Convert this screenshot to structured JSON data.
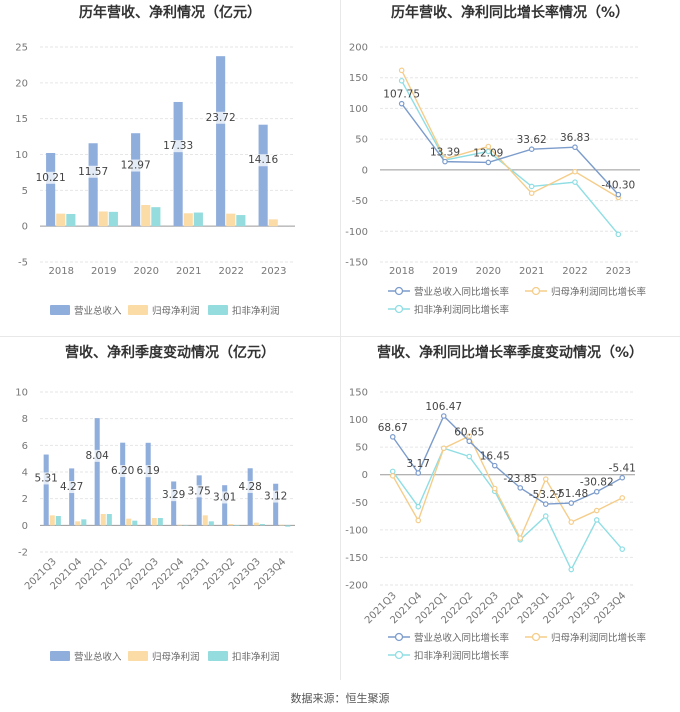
{
  "source": "数据来源：恒生聚源",
  "colors": {
    "revenue": "#90aedc",
    "net": "#fbdca6",
    "deducted": "#94dcde",
    "rev_line": "#7c9ccc",
    "net_line": "#f5cd8a",
    "ded_line": "#8fdee4",
    "grid": "#e6e6e6",
    "axis": "#999999"
  },
  "chart_data": [
    {
      "id": "annual-bar",
      "type": "bar",
      "title": "历年营收、净利情况（亿元）",
      "categories": [
        "2018",
        "2019",
        "2020",
        "2021",
        "2022",
        "2023"
      ],
      "ylim": [
        -5,
        25
      ],
      "yticks": [
        -5,
        0,
        5,
        10,
        15,
        20,
        25
      ],
      "series": [
        {
          "name": "营业总收入",
          "color_key": "revenue",
          "values": [
            10.21,
            11.57,
            12.97,
            17.33,
            23.72,
            14.16
          ],
          "labels": [
            "10.21",
            "11.57",
            "12.97",
            "17.33",
            "23.72",
            "14.16"
          ]
        },
        {
          "name": "归母净利润",
          "color_key": "net",
          "values": [
            1.75,
            2.05,
            2.95,
            1.8,
            1.75,
            0.95
          ]
        },
        {
          "name": "扣非净利润",
          "color_key": "deducted",
          "values": [
            1.7,
            2.0,
            2.65,
            1.9,
            1.55,
            0
          ]
        }
      ],
      "legend": "bottom",
      "grid": true
    },
    {
      "id": "annual-line",
      "type": "line",
      "title": "历年营收、净利同比增长率情况（%）",
      "categories": [
        "2018",
        "2019",
        "2020",
        "2021",
        "2022",
        "2023"
      ],
      "ylim": [
        -150,
        200
      ],
      "yticks": [
        -150,
        -100,
        -50,
        0,
        50,
        100,
        150,
        200
      ],
      "series": [
        {
          "name": "营业总收入同比增长率",
          "color_key": "rev_line",
          "values": [
            107.75,
            13.39,
            12.09,
            33.62,
            36.83,
            -40.3
          ],
          "labels": [
            "107.75",
            "13.39",
            "12.09",
            "33.62",
            "36.83",
            "-40.30"
          ]
        },
        {
          "name": "归母净利润同比增长率",
          "color_key": "net_line",
          "values": [
            162,
            18,
            38,
            -38,
            -3,
            -45
          ]
        },
        {
          "name": "扣非净利润同比增长率",
          "color_key": "ded_line",
          "values": [
            145,
            16,
            30,
            -27,
            -20,
            -105
          ]
        }
      ],
      "legend": "bottom",
      "grid": true
    },
    {
      "id": "quarter-bar",
      "type": "bar",
      "title": "营收、净利季度变动情况（亿元）",
      "categories": [
        "2021Q3",
        "2021Q4",
        "2022Q1",
        "2022Q2",
        "2022Q3",
        "2022Q4",
        "2023Q1",
        "2023Q2",
        "2023Q3",
        "2023Q4"
      ],
      "ylim": [
        -2,
        10
      ],
      "yticks": [
        -2,
        0,
        2,
        4,
        6,
        8,
        10
      ],
      "series": [
        {
          "name": "营业总收入",
          "color_key": "revenue",
          "values": [
            5.31,
            4.27,
            8.04,
            6.2,
            6.19,
            3.29,
            3.75,
            3.01,
            4.28,
            3.12
          ],
          "labels": [
            "5.31",
            "4.27",
            "8.04",
            "6.20",
            "6.19",
            "3.29",
            "3.75",
            "3.01",
            "4.28",
            "3.12"
          ]
        },
        {
          "name": "归母净利润",
          "color_key": "net",
          "values": [
            0.75,
            0.3,
            0.85,
            0.5,
            0.55,
            0.05,
            0.75,
            0.1,
            0.2,
            0.05
          ]
        },
        {
          "name": "扣非净利润",
          "color_key": "deducted",
          "values": [
            0.7,
            0.45,
            0.85,
            0.35,
            0.55,
            0.03,
            0.3,
            -0.05,
            0.1,
            -0.1
          ]
        }
      ],
      "legend": "bottom",
      "grid": true
    },
    {
      "id": "quarter-line",
      "type": "line",
      "title": "营收、净利同比增长率季度变动情况（%）",
      "categories": [
        "2021Q3",
        "2021Q4",
        "2022Q1",
        "2022Q2",
        "2022Q3",
        "2022Q4",
        "2023Q1",
        "2023Q2",
        "2023Q3",
        "2023Q4"
      ],
      "ylim": [
        -200,
        150
      ],
      "yticks": [
        -200,
        -150,
        -100,
        -50,
        0,
        50,
        100,
        150
      ],
      "series": [
        {
          "name": "营业总收入同比增长率",
          "color_key": "rev_line",
          "values": [
            68.67,
            3.17,
            106.47,
            60.65,
            16.45,
            -23.85,
            -53.27,
            -51.48,
            -30.82,
            -5.41
          ],
          "labels": [
            "68.67",
            "3.17",
            "106.47",
            "60.65",
            "16.45",
            "-23.85",
            "-53.27",
            "-51.48",
            "-30.82",
            "-5.41"
          ]
        },
        {
          "name": "归母净利润同比增长率",
          "color_key": "net_line",
          "values": [
            -2,
            -83,
            48,
            70,
            -25,
            -115,
            -8,
            -86,
            -65,
            -42
          ]
        },
        {
          "name": "扣非净利润同比增长率",
          "color_key": "ded_line",
          "values": [
            6,
            -58,
            48,
            33,
            -30,
            -118,
            -75,
            -172,
            -82,
            -135
          ]
        }
      ],
      "legend": "bottom",
      "grid": true
    }
  ]
}
